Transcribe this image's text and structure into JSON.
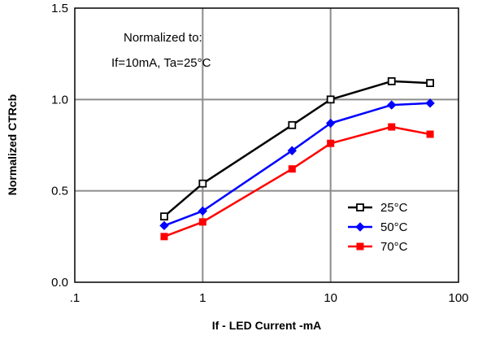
{
  "chart_data": {
    "type": "line",
    "xlabel": "If - LED Current -mA",
    "ylabel": "Normalized CTRcb",
    "xscale": "log",
    "xlim": [
      0.1,
      100
    ],
    "ylim": [
      0.0,
      1.5
    ],
    "x_ticks": [
      0.1,
      1,
      10,
      100
    ],
    "x_tick_labels": [
      ".1",
      "1",
      "10",
      "100"
    ],
    "y_ticks": [
      0.0,
      0.5,
      1.0,
      1.5
    ],
    "y_tick_labels": [
      "0.0",
      "0.5",
      "1.0",
      "1.5"
    ],
    "grid": true,
    "legend_position": "bottom-right",
    "annotation": {
      "line1": "Normalized to:",
      "line2": "If=10mA, Ta=25°C"
    },
    "series": [
      {
        "name": "25°C",
        "color": "#000000",
        "marker": "square-open",
        "x": [
          0.5,
          1,
          5,
          10,
          30,
          60
        ],
        "y": [
          0.36,
          0.54,
          0.86,
          1.0,
          1.1,
          1.09
        ]
      },
      {
        "name": "50°C",
        "color": "#0000ff",
        "marker": "diamond-filled",
        "x": [
          0.5,
          1,
          5,
          10,
          30,
          60
        ],
        "y": [
          0.31,
          0.39,
          0.72,
          0.87,
          0.97,
          0.98
        ]
      },
      {
        "name": "70°C",
        "color": "#ff0000",
        "marker": "square-filled",
        "x": [
          0.5,
          1,
          5,
          10,
          30,
          60
        ],
        "y": [
          0.25,
          0.33,
          0.62,
          0.76,
          0.85,
          0.81
        ]
      }
    ]
  }
}
